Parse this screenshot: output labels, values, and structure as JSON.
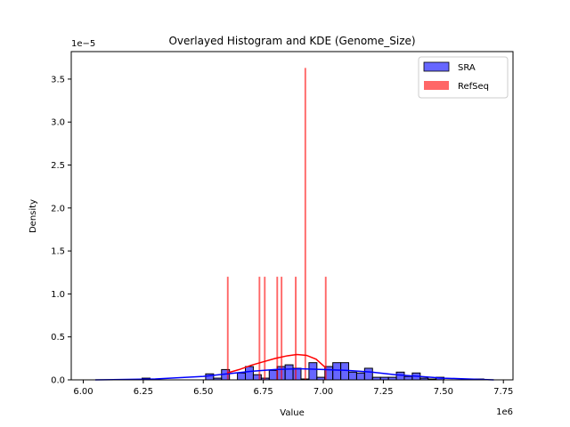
{
  "chart_data": {
    "type": "histogram",
    "title": "Overlayed Histogram and KDE (Genome_Size)",
    "xlabel": "Value",
    "ylabel": "Density",
    "x_offset_text": "1e6",
    "y_offset_text": "1e−5",
    "xlim": [
      5.95,
      7.79
    ],
    "ylim": [
      0,
      3.82
    ],
    "x_unit_multiplier": 1000000,
    "y_unit_multiplier": 1e-05,
    "x_ticks": [
      "6.00",
      "6.25",
      "6.50",
      "6.75",
      "7.00",
      "7.25",
      "7.50",
      "7.75"
    ],
    "y_ticks": [
      "0.0",
      "0.5",
      "1.0",
      "1.5",
      "2.0",
      "2.5",
      "3.0",
      "3.5"
    ],
    "grid": false,
    "legend_placement": "top-right",
    "series": [
      {
        "name": "SRA",
        "color": "#0000ff",
        "bin_start": 6.245,
        "bin_width": 0.0331,
        "values": [
          0.02,
          0,
          0,
          0,
          0,
          0,
          0,
          0,
          0.07,
          0.02,
          0.12,
          0,
          0.08,
          0.155,
          0.06,
          0.02,
          0.11,
          0.155,
          0.175,
          0.135,
          0.01,
          0.2,
          0.03,
          0.155,
          0.2,
          0.2,
          0.09,
          0.08,
          0.135,
          0.03,
          0.03,
          0.03,
          0.09,
          0.04,
          0.08,
          0.02,
          0.01,
          0.03,
          0,
          0,
          0,
          0.01,
          0.01
        ],
        "kde": [
          [
            6.05,
            0.0
          ],
          [
            6.3,
            0.01
          ],
          [
            6.5,
            0.04
          ],
          [
            6.6,
            0.07
          ],
          [
            6.7,
            0.1
          ],
          [
            6.8,
            0.12
          ],
          [
            6.9,
            0.13
          ],
          [
            7.0,
            0.12
          ],
          [
            7.1,
            0.11
          ],
          [
            7.2,
            0.09
          ],
          [
            7.3,
            0.06
          ],
          [
            7.4,
            0.04
          ],
          [
            7.5,
            0.02
          ],
          [
            7.6,
            0.01
          ],
          [
            7.71,
            0.0
          ]
        ]
      },
      {
        "name": "RefSeq",
        "color": "#ff0000",
        "bar_width": 0.007,
        "bars": [
          [
            6.602,
            1.2
          ],
          [
            6.734,
            1.2
          ],
          [
            6.756,
            1.2
          ],
          [
            6.808,
            1.2
          ],
          [
            6.826,
            1.2
          ],
          [
            6.885,
            1.2
          ],
          [
            6.925,
            3.63
          ],
          [
            7.01,
            1.2
          ]
        ],
        "kde": [
          [
            6.6,
            0.08
          ],
          [
            6.65,
            0.12
          ],
          [
            6.7,
            0.17
          ],
          [
            6.75,
            0.21
          ],
          [
            6.8,
            0.25
          ],
          [
            6.85,
            0.28
          ],
          [
            6.89,
            0.295
          ],
          [
            6.93,
            0.285
          ],
          [
            6.97,
            0.24
          ],
          [
            7.01,
            0.14
          ]
        ]
      }
    ]
  }
}
